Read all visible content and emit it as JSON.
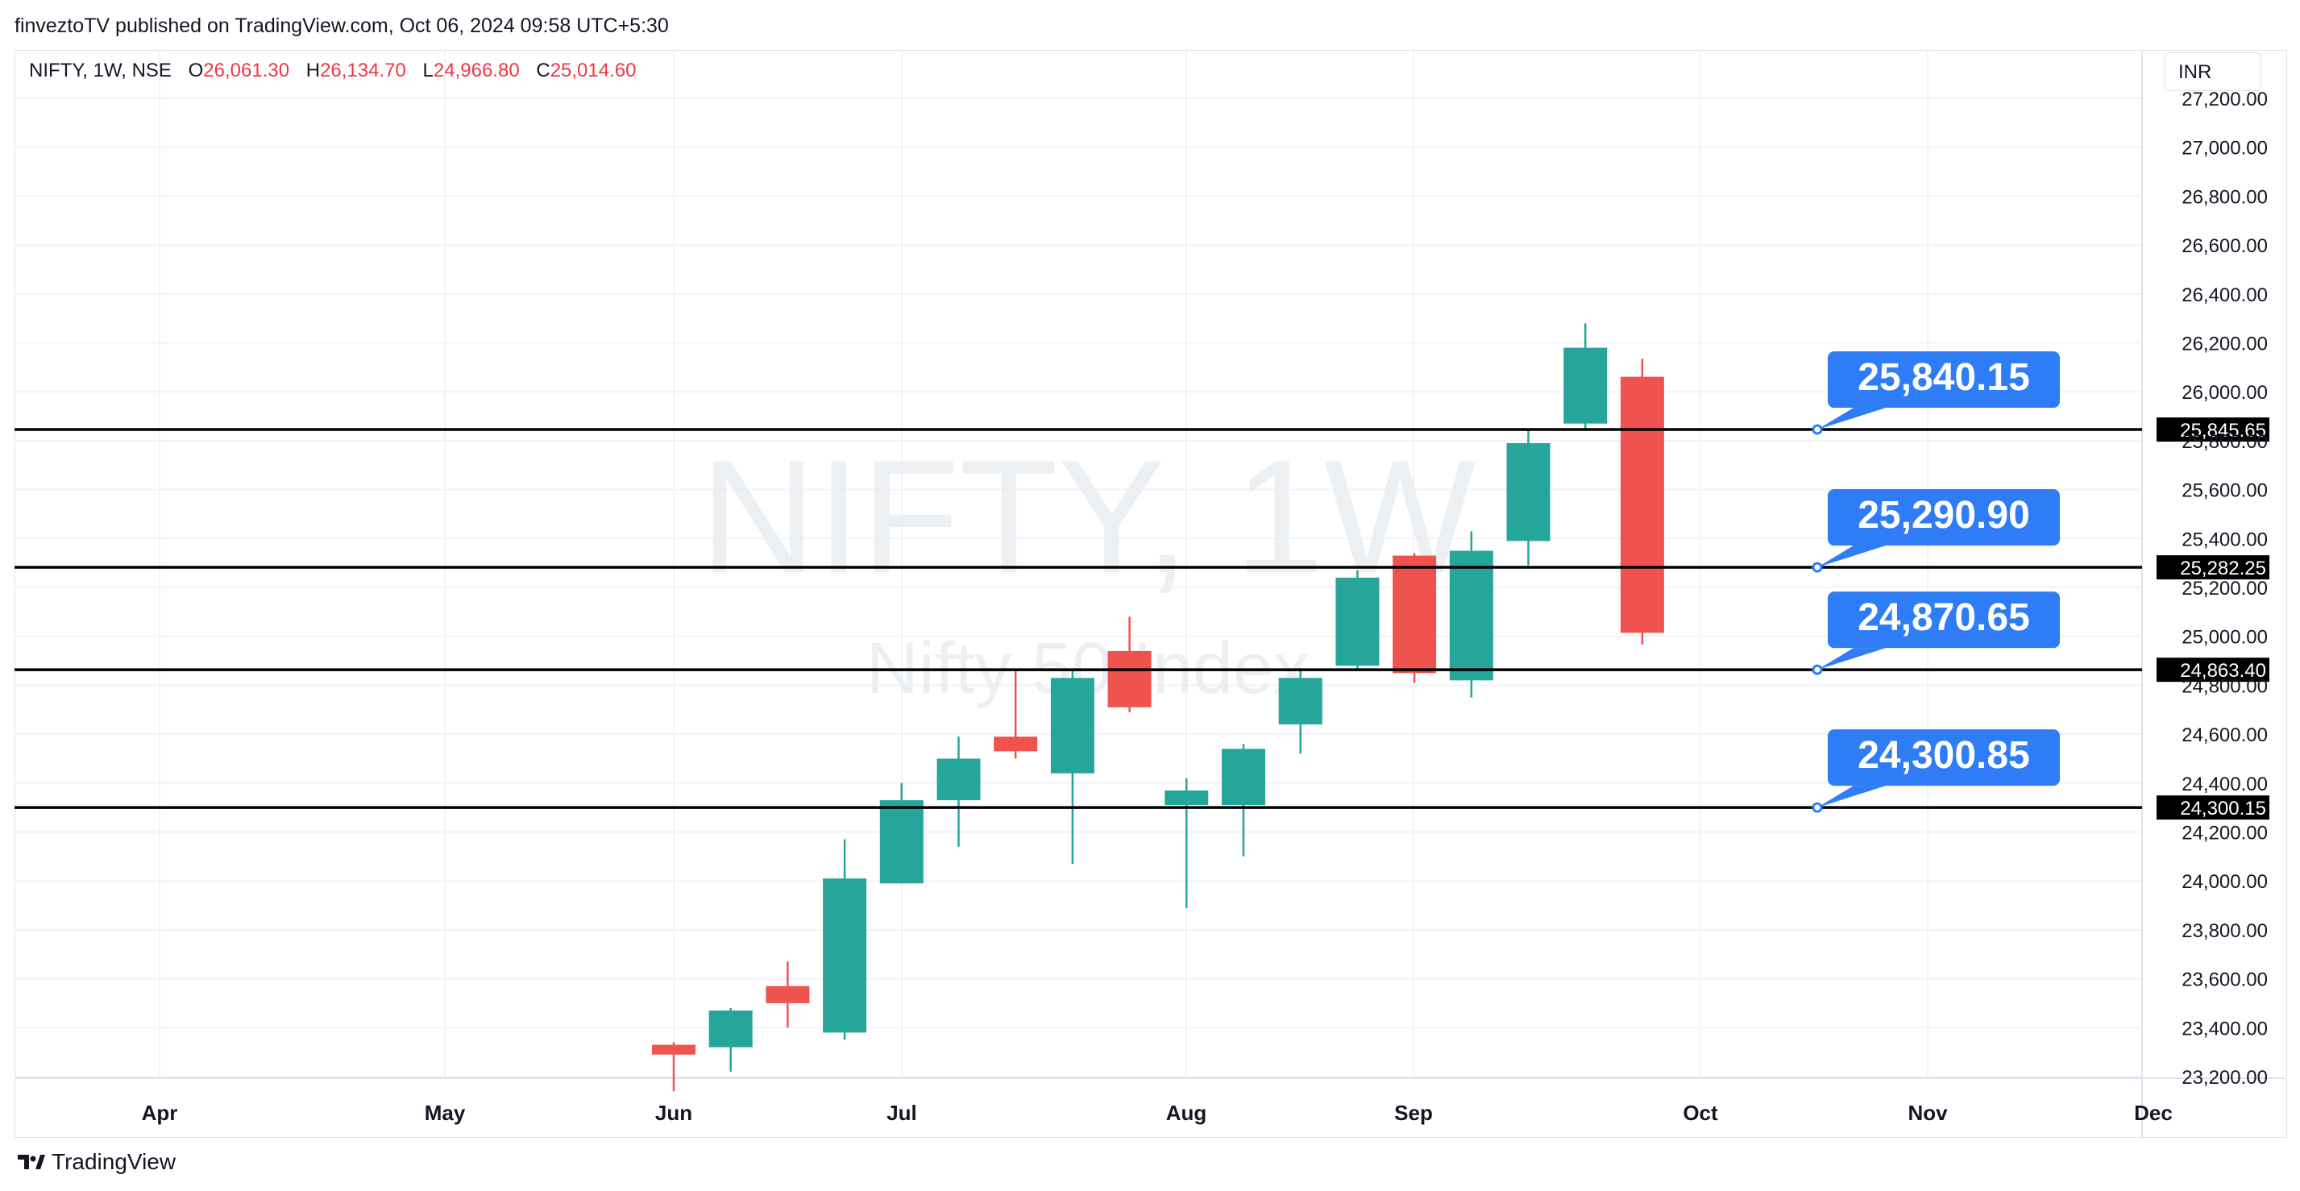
{
  "header": {
    "publisher_line": "finveztoTV published on TradingView.com, Oct 06, 2024 09:58 UTC+5:30"
  },
  "symbol": {
    "name": "NIFTY, 1W, NSE",
    "open_label": "O",
    "open": "26,061.30",
    "high_label": "H",
    "high": "26,134.70",
    "low_label": "L",
    "low": "24,966.80",
    "close_label": "C",
    "close": "25,014.60"
  },
  "currency": "INR",
  "watermark": {
    "title": "NIFTY, 1W",
    "subtitle": "Nifty 50 Index"
  },
  "footer": {
    "brand": "TradingView"
  },
  "colors": {
    "up": "#26a69a",
    "down": "#ef5350",
    "callout": "#2f7df6",
    "line": "#000000"
  },
  "chart_data": {
    "type": "candlestick",
    "ylim": [
      23100,
      27300
    ],
    "y_ticks": [
      "23,200.00",
      "23,400.00",
      "23,600.00",
      "23,800.00",
      "24,000.00",
      "24,200.00",
      "24,400.00",
      "24,600.00",
      "24,800.00",
      "25,000.00",
      "25,200.00",
      "25,400.00",
      "25,600.00",
      "25,800.00",
      "26,000.00",
      "26,200.00",
      "26,400.00",
      "26,600.00",
      "26,800.00",
      "27,000.00",
      "27,200.00"
    ],
    "x_labels": [
      "Apr",
      "May",
      "Jun",
      "Jul",
      "Aug",
      "Sep",
      "Oct",
      "Nov",
      "Dec"
    ],
    "candles": [
      {
        "week": "Jun wk1",
        "open": 23330,
        "high": 23340,
        "low": 23140,
        "close": 23290
      },
      {
        "week": "Jun wk2",
        "open": 23320,
        "high": 23480,
        "low": 23220,
        "close": 23470
      },
      {
        "week": "Jun wk3",
        "open": 23570,
        "high": 23670,
        "low": 23400,
        "close": 23500
      },
      {
        "week": "Jun wk4",
        "open": 23380,
        "high": 24170,
        "low": 23350,
        "close": 24010
      },
      {
        "week": "Jul wk1",
        "open": 23990,
        "high": 24400,
        "low": 23990,
        "close": 24330
      },
      {
        "week": "Jul wk2",
        "open": 24330,
        "high": 24590,
        "low": 24140,
        "close": 24500
      },
      {
        "week": "Jul wk3",
        "open": 24590,
        "high": 24860,
        "low": 24500,
        "close": 24530
      },
      {
        "week": "Jul wk4",
        "open": 24440,
        "high": 24860,
        "low": 24070,
        "close": 24830
      },
      {
        "week": "Jul wk5",
        "open": 24940,
        "high": 25080,
        "low": 24690,
        "close": 24710
      },
      {
        "week": "Aug wk1",
        "open": 24310,
        "high": 24420,
        "low": 23890,
        "close": 24370
      },
      {
        "week": "Aug wk2",
        "open": 24310,
        "high": 24560,
        "low": 24100,
        "close": 24540
      },
      {
        "week": "Aug wk3",
        "open": 24640,
        "high": 24870,
        "low": 24520,
        "close": 24830
      },
      {
        "week": "Aug wk4",
        "open": 24880,
        "high": 25270,
        "low": 24860,
        "close": 25240
      },
      {
        "week": "Sep wk1",
        "open": 25330,
        "high": 25340,
        "low": 24810,
        "close": 24850
      },
      {
        "week": "Sep wk2",
        "open": 24820,
        "high": 25430,
        "low": 24750,
        "close": 25350
      },
      {
        "week": "Sep wk3",
        "open": 25390,
        "high": 25850,
        "low": 25290,
        "close": 25790
      },
      {
        "week": "Sep wk4",
        "open": 25870,
        "high": 26280,
        "low": 25850,
        "close": 26180
      },
      {
        "week": "Oct wk1",
        "open": 26061.3,
        "high": 26134.7,
        "low": 24966.8,
        "close": 25014.6
      }
    ],
    "levels": [
      {
        "value": 25845.65,
        "axis_label": "25,845.65",
        "callout": "25,840.15"
      },
      {
        "value": 25282.25,
        "axis_label": "25,282.25",
        "callout": "25,290.90"
      },
      {
        "value": 24863.4,
        "axis_label": "24,863.40",
        "callout": "24,870.65"
      },
      {
        "value": 24300.15,
        "axis_label": "24,300.15",
        "callout": "24,300.85"
      }
    ]
  }
}
